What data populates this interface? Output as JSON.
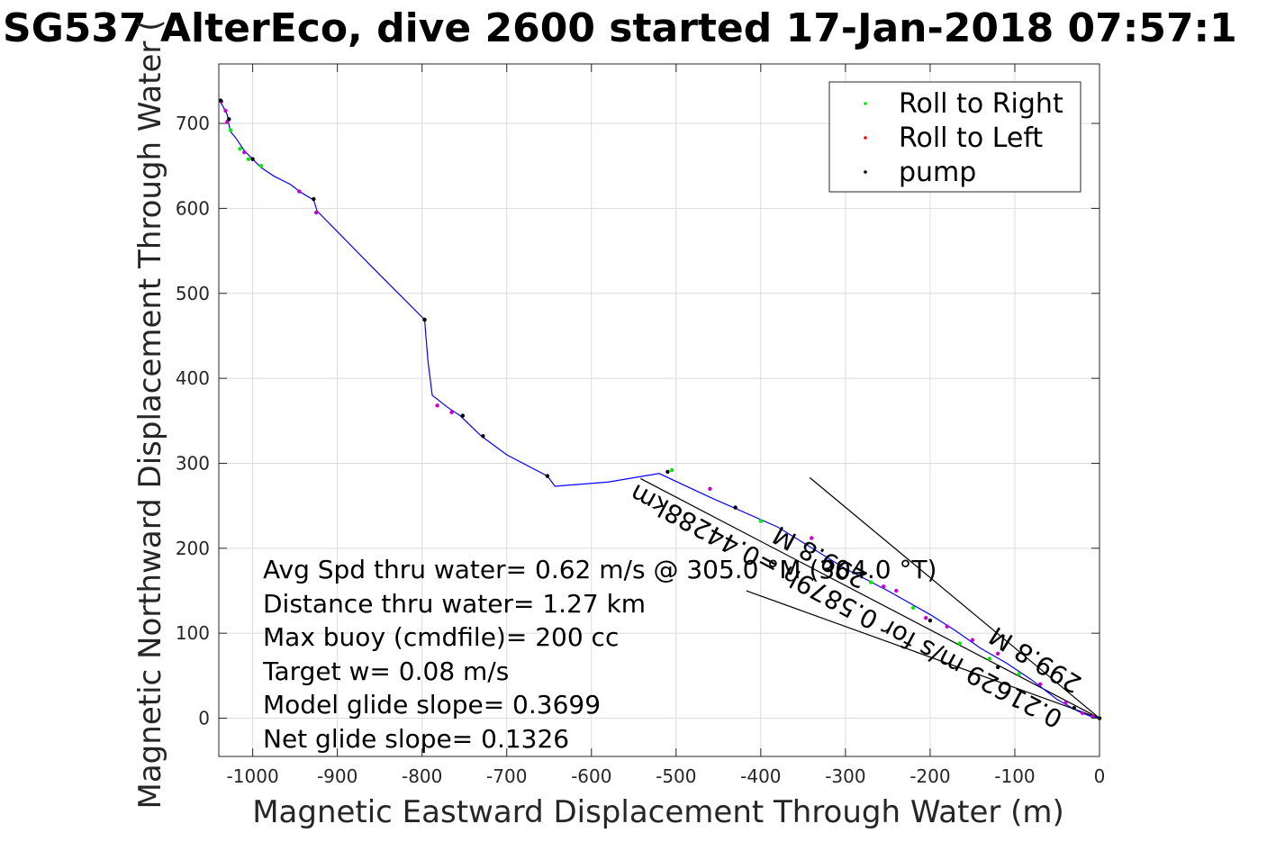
{
  "chart_data": {
    "type": "scatter",
    "title": "SG537 AlterEco, dive 2600 started 17-Jan-2018 07:57:1",
    "xlabel": "Magnetic Eastward Displacement Through Water (m)",
    "ylabel": "Magnetic Northward Displacement Through Water (",
    "xlim": [
      -1040,
      0
    ],
    "ylim": [
      -45,
      770
    ],
    "xticks": [
      -1000,
      -900,
      -800,
      -700,
      -600,
      -500,
      -400,
      -300,
      -200,
      -100,
      0
    ],
    "yticks": [
      0,
      100,
      200,
      300,
      400,
      500,
      600,
      700
    ],
    "grid": true,
    "legend_position": "top-right",
    "colors": {
      "track": "#0000ff",
      "roll_right": "#00ee00",
      "roll_left": "#ff0000",
      "pump": "#000000",
      "magenta": "#cc00cc",
      "line": "#000000"
    },
    "legend": [
      {
        "label": "Roll to Right",
        "color": "#00ee00"
      },
      {
        "label": "Roll to Left",
        "color": "#ff0000"
      },
      {
        "label": "pump",
        "color": "#000000"
      }
    ],
    "series": [
      {
        "name": "track",
        "x": [
          -1040,
          -1035,
          -1030,
          -1028,
          -1026,
          -1020,
          -1010,
          -1000,
          -990,
          -975,
          -955,
          -945,
          -935,
          -928,
          -924,
          -860,
          -797,
          -793,
          -788,
          -770,
          -755,
          -730,
          -700,
          -652,
          -643,
          -580,
          -520,
          -460,
          -380,
          -300,
          -250,
          -200,
          -170,
          -140,
          -110,
          -80,
          -50,
          -25,
          -10,
          0
        ],
        "y": [
          728,
          720,
          710,
          698,
          690,
          683,
          668,
          658,
          648,
          638,
          628,
          620,
          614,
          610,
          597,
          532,
          469,
          420,
          380,
          366,
          356,
          332,
          310,
          285,
          273,
          278,
          288,
          260,
          225,
          176,
          150,
          122,
          103,
          82,
          65,
          45,
          22,
          8,
          2,
          0
        ]
      },
      {
        "name": "Roll to Right",
        "x": [
          -1028,
          -1026,
          -1015,
          -1005,
          -990,
          -505,
          -400,
          -270,
          -220,
          -165,
          -130,
          -95
        ],
        "y": [
          705,
          692,
          670,
          658,
          650,
          292,
          232,
          160,
          130,
          88,
          70,
          52
        ]
      },
      {
        "name": "Roll to Left",
        "x": [
          -1037,
          -1032,
          -1030,
          -1010,
          -945,
          -925,
          -797,
          -782,
          -765,
          -460,
          -340,
          -255,
          -240,
          -205,
          -180,
          -150,
          -120,
          -70,
          -40,
          -20,
          -8,
          0
        ],
        "y": [
          726,
          715,
          702,
          666,
          620,
          595,
          469,
          368,
          360,
          270,
          212,
          155,
          150,
          118,
          108,
          92,
          76,
          40,
          18,
          6,
          2,
          0
        ]
      },
      {
        "name": "pump",
        "x": [
          -1038,
          -1028,
          -1000,
          -928,
          -797,
          -752,
          -728,
          -652,
          -510,
          -430,
          -200,
          -120,
          -30,
          0
        ],
        "y": [
          727,
          705,
          658,
          611,
          469,
          356,
          332,
          285,
          290,
          248,
          115,
          60,
          12,
          0
        ]
      }
    ],
    "guide_lines": [
      {
        "from": [
          -342,
          283
        ],
        "to": [
          0,
          0
        ]
      },
      {
        "from": [
          -417,
          150
        ],
        "to": [
          0,
          0
        ]
      },
      {
        "from": [
          -542,
          282
        ],
        "to": [
          0,
          0
        ]
      }
    ],
    "annotations": [
      {
        "text": "Avg Spd thru water=  0.62 m/s @ 305.0 °M (304.0 °T)"
      },
      {
        "text": "Distance thru water=  1.27 km"
      },
      {
        "text": "Max buoy (cmdfile)= 200 cc"
      },
      {
        "text": "Target w= 0.08 m/s"
      },
      {
        "text": "Model glide slope= 0.3699"
      },
      {
        "text": "Net glide slope= 0.1326"
      }
    ],
    "rotated_labels": [
      {
        "text": "299.8 M"
      },
      {
        "text": "0.21629 m/s for 0.5879h =0.44288km"
      },
      {
        "text": "299.8 M"
      }
    ]
  }
}
